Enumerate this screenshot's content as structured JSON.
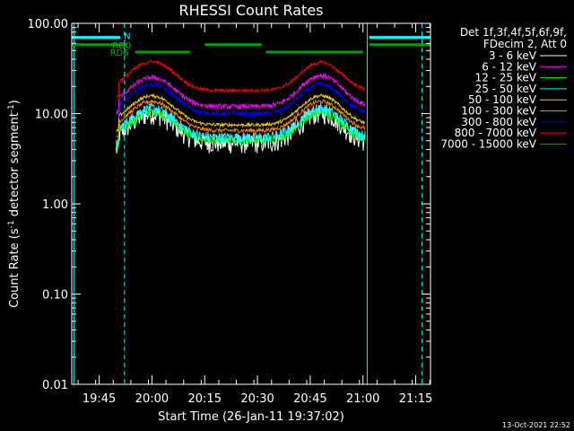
{
  "chart_data": {
    "type": "line",
    "title": "RHESSI Count Rates",
    "xlabel": "Start Time (26-Jan-11 19:37:02)",
    "ylabel_main": "Count Rate (s",
    "ylabel_sup1": "-1",
    "ylabel_mid": " detector segment",
    "ylabel_sup2": "-1",
    "ylabel_end": ")",
    "y_scale": "log",
    "ylim": [
      0.01,
      100
    ],
    "xlim_minutes": [
      19.62,
      21.32
    ],
    "y_ticks": [
      {
        "value": 100,
        "label": "100.00"
      },
      {
        "value": 10,
        "label": "10.00"
      },
      {
        "value": 1,
        "label": "1.00"
      },
      {
        "value": 0.1,
        "label": "0.10"
      },
      {
        "value": 0.01,
        "label": "0.01"
      }
    ],
    "x_ticks": [
      {
        "value": 19.75,
        "label": "19:45"
      },
      {
        "value": 20.0,
        "label": "20:00"
      },
      {
        "value": 20.25,
        "label": "20:15"
      },
      {
        "value": 20.5,
        "label": "20:30"
      },
      {
        "value": 20.75,
        "label": "20:45"
      },
      {
        "value": 21.0,
        "label": "21:00"
      },
      {
        "value": 21.25,
        "label": "21:15"
      }
    ],
    "legend_header": [
      "Det 1f,3f,4f,5f,6f,9f,",
      "FDecim 2, Att 0"
    ],
    "series": [
      {
        "name": "3 - 6 keV",
        "color": "#ffffff",
        "base": 9.5,
        "amp2": 1.05,
        "dip": 0.18,
        "noise": 0.5
      },
      {
        "name": "6 - 12 keV",
        "color": "#ff00ff",
        "base": 24,
        "amp2": 1.1,
        "dip": 0.1,
        "noise": 0.12
      },
      {
        "name": "12 - 25 keV",
        "color": "#00ff00",
        "base": 10,
        "amp2": 1.0,
        "dip": 0.2,
        "noise": 0.2
      },
      {
        "name": "25 - 50 keV",
        "color": "#00ffff",
        "base": 11,
        "amp2": 1.0,
        "dip": 0.18,
        "noise": 0.25
      },
      {
        "name": "50 - 100 keV",
        "color": "#ffcc00",
        "base": 15,
        "amp2": 1.0,
        "dip": 0.12,
        "noise": 0.08
      },
      {
        "name": "100 - 300 keV",
        "color": "#ff8000",
        "base": 13,
        "amp2": 1.0,
        "dip": 0.11,
        "noise": 0.1
      },
      {
        "name": "300 - 800 keV",
        "color": "#0000ff",
        "base": 20,
        "amp2": 1.0,
        "dip": 0.12,
        "noise": 0.12
      },
      {
        "name": "800 - 7000 keV",
        "color": "#ff0000",
        "base": 36,
        "amp2": 0.95,
        "dip": 0.1,
        "noise": 0.08
      },
      {
        "name": "7000 - 15000 keV",
        "color": "#608000",
        "base": 0,
        "amp2": 0,
        "dip": 0,
        "noise": 0
      }
    ],
    "attenuator_segments": [
      {
        "label": "RD0",
        "y": 58,
        "x1": 19.62,
        "x2": 19.88
      },
      {
        "label": "",
        "y": 58,
        "x1": 21.03,
        "x2": 21.32
      },
      {
        "label": "RD6",
        "y": 48,
        "x1": 19.92,
        "x2": 20.18
      },
      {
        "label": "",
        "y": 58,
        "x1": 20.25,
        "x2": 20.52
      },
      {
        "label": "",
        "y": 48,
        "x1": 20.54,
        "x2": 21.0
      }
    ],
    "night_segments": [
      {
        "label": "N",
        "y": 70,
        "x1": 19.62,
        "x2": 19.85
      },
      {
        "label": "",
        "y": 70,
        "x1": 21.03,
        "x2": 21.32
      }
    ],
    "vertical_lines_solid": [
      19.63,
      21.02
    ],
    "vertical_lines_dashed": [
      19.87,
      21.28
    ],
    "data_start": 19.83,
    "data_end": 21.01,
    "timestamp": "13-Oct-2021 22:52"
  }
}
